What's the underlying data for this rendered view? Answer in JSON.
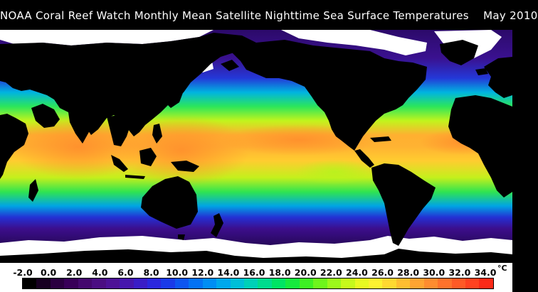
{
  "title": "NOAA Coral Reef Watch Monthly Mean Satellite Nighttime Sea Surface Temperatures    May 2010",
  "legend": {
    "ticks": [
      "-2.0",
      "0.0",
      "2.0",
      "4.0",
      "6.0",
      "8.0",
      "10.0",
      "12.0",
      "14.0",
      "16.0",
      "18.0",
      "20.0",
      "22.0",
      "24.0",
      "26.0",
      "28.0",
      "30.0",
      "32.0",
      "34.0"
    ],
    "unit": "°C",
    "colors": [
      "#000000",
      "#170021",
      "#2a0040",
      "#380058",
      "#44086e",
      "#4b0e82",
      "#4d1296",
      "#4616ad",
      "#3a1dc6",
      "#2b27dd",
      "#1a3ae8",
      "#0d55f0",
      "#0472f4",
      "#008ef4",
      "#00a8ec",
      "#00bfd8",
      "#00d1b8",
      "#00dc8e",
      "#00e464",
      "#16ea3e",
      "#3ef024",
      "#6ef51c",
      "#9cf81c",
      "#c6fa1c",
      "#e8fa22",
      "#fcf230",
      "#ffd930",
      "#ffbe30",
      "#ffa432",
      "#ff8c30",
      "#ff722c",
      "#ff5a26",
      "#ff4220",
      "#fb2a18"
    ]
  },
  "map": {
    "land_color": "#000000",
    "ice_color": "#ffffff",
    "sst_gradient": [
      {
        "lat": 90,
        "color": "#2c0a6a"
      },
      {
        "lat": 62,
        "color": "#3a1190"
      },
      {
        "lat": 48,
        "color": "#2438d8"
      },
      {
        "lat": 38,
        "color": "#00b4e0"
      },
      {
        "lat": 28,
        "color": "#2ce65a"
      },
      {
        "lat": 18,
        "color": "#c2f41c"
      },
      {
        "lat": 8,
        "color": "#ffb030"
      },
      {
        "lat": 0,
        "color": "#ffb232"
      },
      {
        "lat": -10,
        "color": "#ffcc30"
      },
      {
        "lat": -22,
        "color": "#c4f01c"
      },
      {
        "lat": -32,
        "color": "#30e450"
      },
      {
        "lat": -42,
        "color": "#00a4e4"
      },
      {
        "lat": -50,
        "color": "#2430d4"
      },
      {
        "lat": -58,
        "color": "#3c0e8c"
      },
      {
        "lat": -70,
        "color": "#260858"
      }
    ]
  }
}
